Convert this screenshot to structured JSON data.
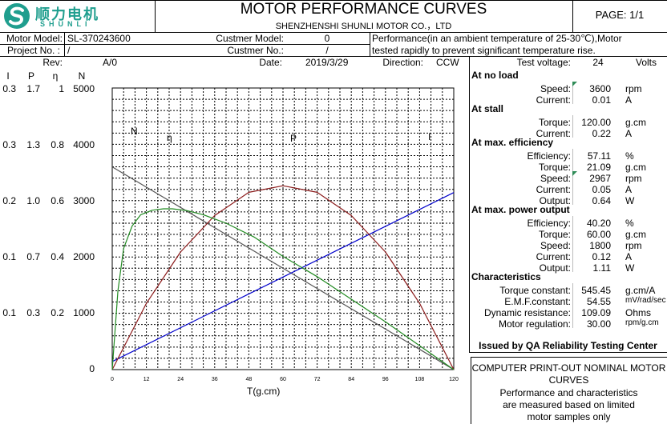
{
  "header": {
    "logo_cn": "顺力电机",
    "logo_en": "SHUNLI",
    "title": "MOTOR PERFORMANCE CURVES",
    "company": "SHENZHENSHI SHUNLI MOTOR CO.，LTD",
    "page": "PAGE: 1/1"
  },
  "info": {
    "motor_model_label": "Motor Model:",
    "motor_model": "SL-370243600",
    "customer_model_label": "Custmer Model:",
    "customer_model": "0",
    "performance_note_1": "Performance(in an ambient temperature of 25-30℃),Motor",
    "performance_note_2": "tested rapidly to prevent significant temperature rise.",
    "project_label": "Project No. :",
    "project_no": "/",
    "customer_no_label": "Custmer No.:",
    "customer_no": "/",
    "rev_label": "Rev:",
    "rev": "A/0",
    "date_label": "Date:",
    "date": "2019/3/29",
    "direction_label": "Direction:",
    "direction": "CCW",
    "test_voltage_label": "Test voltage:",
    "test_voltage": "24",
    "test_voltage_unit": "Volts"
  },
  "axis_headers": [
    "I",
    "P",
    "η",
    "N"
  ],
  "axis_rows": [
    [
      "0.3",
      "1.7",
      "1",
      "5000"
    ],
    [
      "0.3",
      "1.3",
      "0.8",
      "4000"
    ],
    [
      "0.2",
      "1.0",
      "0.6",
      "3000"
    ],
    [
      "0.1",
      "0.7",
      "0.4",
      "2000"
    ],
    [
      "0.1",
      "0.3",
      "0.2",
      "1000"
    ],
    [
      "",
      "",
      "",
      "0"
    ]
  ],
  "specs": {
    "no_load": {
      "title": "At no load",
      "rows": [
        {
          "label": "Speed:",
          "value": "3600",
          "unit": "rpm"
        },
        {
          "label": "Current:",
          "value": "0.01",
          "unit": "A"
        }
      ]
    },
    "stall": {
      "title": "At stall",
      "rows": [
        {
          "label": "Torque:",
          "value": "120.00",
          "unit": "g.cm"
        },
        {
          "label": "Current:",
          "value": "0.22",
          "unit": "A"
        }
      ]
    },
    "max_eff": {
      "title": "At max. efficiency",
      "rows": [
        {
          "label": "Efficiency:",
          "value": "57.11",
          "unit": "%"
        },
        {
          "label": "Torque:",
          "value": "21.09",
          "unit": "g.cm"
        },
        {
          "label": "Speed:",
          "value": "2967",
          "unit": "rpm"
        },
        {
          "label": "Current:",
          "value": "0.05",
          "unit": "A"
        },
        {
          "label": "Output:",
          "value": "0.64",
          "unit": "W"
        }
      ]
    },
    "max_power": {
      "title": "At max. power output",
      "rows": [
        {
          "label": "Efficiency:",
          "value": "40.20",
          "unit": "%"
        },
        {
          "label": "Torque:",
          "value": "60.00",
          "unit": "g.cm"
        },
        {
          "label": "Speed:",
          "value": "1800",
          "unit": "rpm"
        },
        {
          "label": "Current:",
          "value": "0.12",
          "unit": "A"
        },
        {
          "label": "Output:",
          "value": "1.11",
          "unit": "W"
        }
      ]
    },
    "characteristics": {
      "title": "Characteristics",
      "rows": [
        {
          "label": "Torque constant:",
          "value": "545.45",
          "unit": "g.cm/A"
        },
        {
          "label": "E.M.F.constant:",
          "value": "54.55",
          "unit": "mV/rad/sec"
        },
        {
          "label": "Dynamic resistance:",
          "value": "109.09",
          "unit": "Ohms"
        },
        {
          "label": "Motor regulation:",
          "value": "30.00",
          "unit": "rpm/g.cm"
        }
      ]
    }
  },
  "issued_by": "Issued by QA Reliability Testing Center",
  "disclaimer": {
    "line1": "COMPUTER PRINT-OUT NOMINAL MOTOR",
    "line2": "CURVES",
    "line3": "Performance and characteristics",
    "line4": "are measured based on limited",
    "line5": "motor samples only"
  },
  "chart_data": {
    "type": "line",
    "xlabel": "T(g.cm)",
    "x_ticks": [
      0,
      12,
      24,
      36,
      48,
      60,
      72,
      84,
      96,
      108,
      120
    ],
    "xlim": [
      0,
      120
    ],
    "curve_labels": {
      "N": "N",
      "eta": "η",
      "P": "P",
      "I": "I"
    },
    "series": [
      {
        "name": "N",
        "color": "#555555",
        "x": [
          0,
          120
        ],
        "y": [
          3600,
          0
        ],
        "scale_max": 5000
      },
      {
        "name": "I",
        "color": "#0000cc",
        "x": [
          0,
          120
        ],
        "y": [
          0.01,
          0.22
        ],
        "scale_max": 0.35
      },
      {
        "name": "P",
        "color": "#8b1a1a",
        "x": [
          0,
          12,
          24,
          36,
          48,
          60,
          72,
          84,
          96,
          108,
          120
        ],
        "y": [
          0,
          0.4,
          0.71,
          0.93,
          1.07,
          1.11,
          1.07,
          0.93,
          0.71,
          0.4,
          0
        ],
        "scale_max": 1.7
      },
      {
        "name": "η",
        "color": "#228b22",
        "x": [
          0,
          2,
          4,
          7,
          10,
          14,
          18,
          21.09,
          26,
          32,
          40,
          50,
          60,
          72,
          84,
          96,
          108,
          120
        ],
        "y": [
          0,
          0.28,
          0.43,
          0.51,
          0.55,
          0.566,
          0.571,
          0.5711,
          0.565,
          0.55,
          0.52,
          0.47,
          0.402,
          0.33,
          0.25,
          0.17,
          0.085,
          0
        ],
        "scale_max": 1.0
      }
    ]
  }
}
